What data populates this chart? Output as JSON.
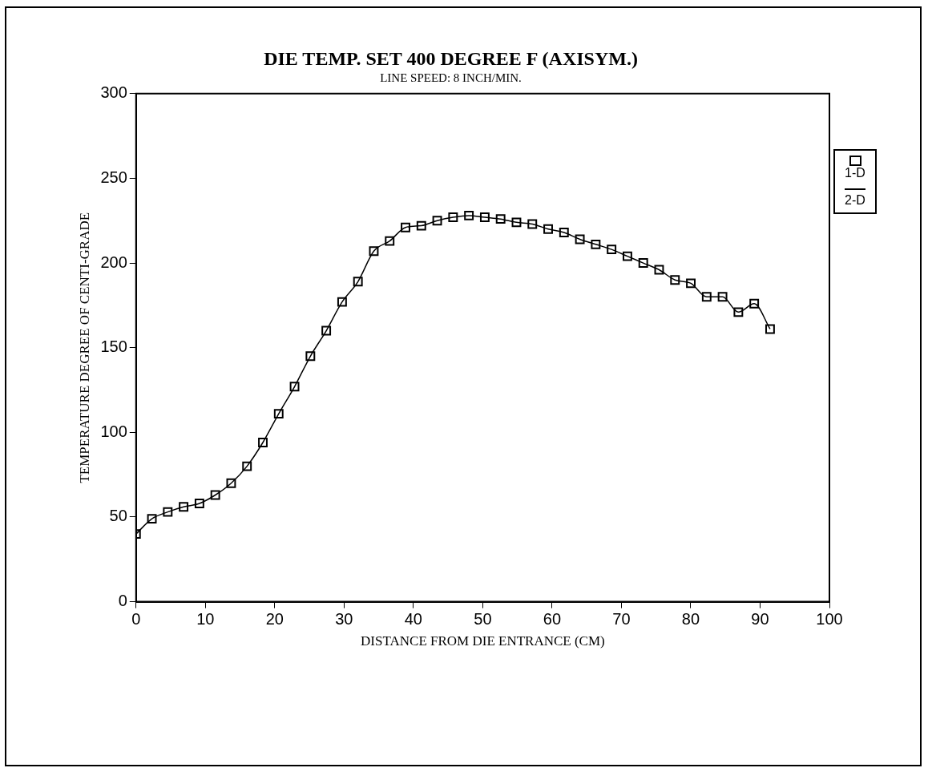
{
  "chart_data": {
    "type": "scatter",
    "title": "DIE TEMP. SET 400 DEGREE F (AXISYM.)",
    "subtitle": "LINE SPEED: 8 INCH/MIN.",
    "xlabel": "DISTANCE FROM DIE ENTRANCE (CM)",
    "ylabel": "TEMPERATURE DEGREE OF CENTI-GRADE",
    "x": [
      0,
      2.286,
      4.572,
      6.858,
      9.144,
      11.43,
      13.716,
      16.002,
      18.288,
      20.574,
      22.86,
      25.146,
      27.432,
      29.718,
      32.004,
      34.29,
      36.576,
      38.862,
      41.148,
      43.434,
      45.72,
      48.006,
      50.292,
      52.578,
      54.864,
      57.15,
      59.436,
      61.722,
      64.008,
      66.294,
      68.58,
      70.866,
      73.152,
      75.438,
      77.724,
      80.01,
      82.296,
      84.582,
      86.868,
      89.154,
      91.44
    ],
    "series": [
      {
        "name": "1-D",
        "color": "#000000",
        "type": "scatter",
        "marker": "square",
        "values": [
          40,
          49,
          53,
          56,
          58,
          63,
          70,
          80,
          94,
          111,
          127,
          145,
          160,
          177,
          189,
          207,
          213,
          221,
          222,
          225,
          227,
          228,
          227,
          226,
          224,
          223,
          220,
          218,
          214,
          211,
          208,
          204,
          200,
          196,
          190,
          188,
          180,
          180,
          171,
          176,
          161
        ]
      },
      {
        "name": "2-D",
        "color": "#000000",
        "type": "line",
        "marker": "none",
        "line_style": "solid",
        "values": [
          40,
          49,
          53,
          56,
          58,
          63,
          70,
          80,
          94,
          111,
          127,
          145,
          160,
          177,
          189,
          207,
          213,
          221,
          222,
          225,
          227,
          228,
          227,
          226,
          224,
          223,
          220,
          218,
          214,
          211,
          208,
          204,
          200,
          196,
          190,
          188,
          180,
          180,
          171,
          176,
          161
        ]
      }
    ],
    "xlim": [
      0,
      100
    ],
    "xticks": [
      0,
      10,
      20,
      30,
      40,
      50,
      60,
      70,
      80,
      90,
      100
    ],
    "ylim": [
      0,
      300
    ],
    "yticks": [
      0,
      50,
      100,
      150,
      200,
      250,
      300
    ],
    "grid": false,
    "legend": "right"
  }
}
